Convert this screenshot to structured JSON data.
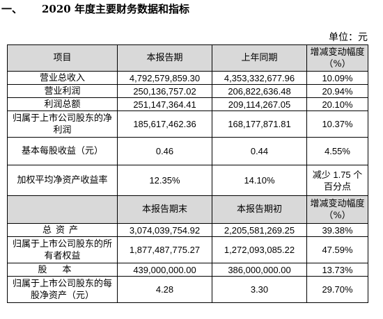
{
  "heading": {
    "index": "一、",
    "title": "2020 年度主要财务数据和指标"
  },
  "unit": "单位：元",
  "table1": {
    "headers": [
      "项目",
      "本报告期",
      "上年同期",
      "增减变动幅度（%）"
    ],
    "rows": [
      {
        "label": "营业总收入",
        "current": "4,792,579,859.30",
        "previous": "4,353,332,677.96",
        "change": "10.09%"
      },
      {
        "label": "营业利润",
        "current": "250,136,757.02",
        "previous": "206,822,636.48",
        "change": "20.94%"
      },
      {
        "label": "利润总额",
        "current": "251,147,364.41",
        "previous": "209,114,267.05",
        "change": "20.10%"
      },
      {
        "label": "归属于上市公司股东的净利润",
        "current": "185,617,462.36",
        "previous": "168,177,871.81",
        "change": "10.37%"
      },
      {
        "label": "基本每股收益（元）",
        "current": "0.46",
        "previous": "0.44",
        "change": "4.55%"
      },
      {
        "label": "加权平均净资产收益率",
        "current": "12.35%",
        "previous": "14.10%",
        "change": "减少 1.75 个百分点"
      }
    ]
  },
  "table2": {
    "headers": [
      "",
      "本报告期末",
      "本报告期初",
      "增减变动幅度（%）"
    ],
    "rows": [
      {
        "label": "总资产",
        "current": "3,074,039,754.92",
        "previous": "2,205,581,269.25",
        "change": "39.38%"
      },
      {
        "label": "归属于上市公司股东的所有者权益",
        "current": "1,877,487,775.27",
        "previous": "1,272,093,085.22",
        "change": "47.59%"
      },
      {
        "label": "股本",
        "current": "439,000,000.00",
        "previous": "386,000,000.00",
        "change": "13.73%"
      },
      {
        "label": "归属于上市公司股东的每股净资产（元）",
        "current": "4.28",
        "previous": "3.30",
        "change": "29.70%"
      }
    ]
  }
}
